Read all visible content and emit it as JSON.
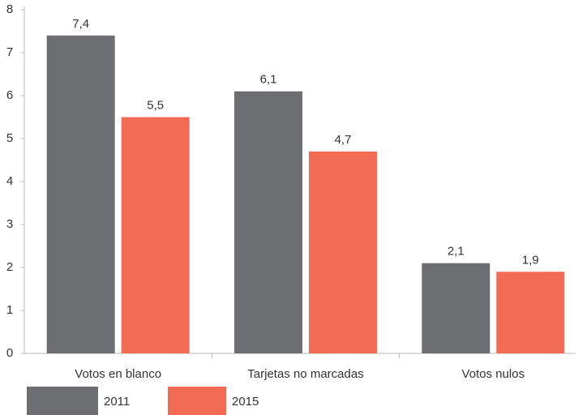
{
  "chart_data": {
    "type": "bar",
    "categories": [
      "Votos en blanco",
      "Tarjetas no marcadas",
      "Votos nulos"
    ],
    "series": [
      {
        "name": "2011",
        "color": "#6d6e71",
        "values": [
          7.4,
          6.1,
          2.1
        ],
        "value_labels": [
          "7,4",
          "6,1",
          "2,1"
        ]
      },
      {
        "name": "2015",
        "color": "#f26c55",
        "values": [
          5.5,
          4.7,
          1.9
        ],
        "value_labels": [
          "5,5",
          "4,7",
          "1,9"
        ]
      }
    ],
    "ylim": [
      0,
      8
    ],
    "yticks": [
      0,
      1,
      2,
      3,
      4,
      5,
      6,
      7,
      8
    ],
    "grid": false
  }
}
